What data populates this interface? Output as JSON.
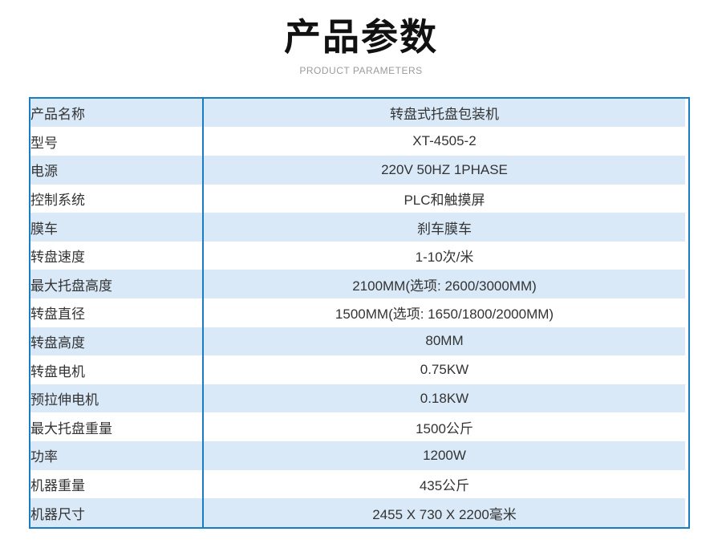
{
  "header": {
    "title": "产品参数",
    "subtitle": "PRODUCT PARAMETERS"
  },
  "table": {
    "rows": [
      {
        "label": "产品名称",
        "value": "转盘式托盘包装机"
      },
      {
        "label": "型号",
        "value": "XT-4505-2"
      },
      {
        "label": "电源",
        "value": "220V 50HZ 1PHASE"
      },
      {
        "label": "控制系统",
        "value": "PLC和触摸屏"
      },
      {
        "label": "膜车",
        "value": "刹车膜车"
      },
      {
        "label": "转盘速度",
        "value": "1-10次/米"
      },
      {
        "label": "最大托盘高度",
        "value": "2100MM(选项: 2600/3000MM)"
      },
      {
        "label": "转盘直径",
        "value": "1500MM(选项: 1650/1800/2000MM)"
      },
      {
        "label": "转盘高度",
        "value": "80MM"
      },
      {
        "label": "转盘电机",
        "value": "0.75KW"
      },
      {
        "label": "预拉伸电机",
        "value": "0.18KW"
      },
      {
        "label": "最大托盘重量",
        "value": "1500公斤"
      },
      {
        "label": "功率",
        "value": "1200W"
      },
      {
        "label": "机器重量",
        "value": "435公斤"
      },
      {
        "label": "机器尺寸",
        "value": "2455 X 730 X 2200毫米"
      }
    ]
  },
  "colors": {
    "accent_border": "#1a7dc4",
    "row_stripe": "#d9e9f8",
    "text": "#333333",
    "title_text": "#111111",
    "subtitle_text": "#9b9b9b"
  }
}
